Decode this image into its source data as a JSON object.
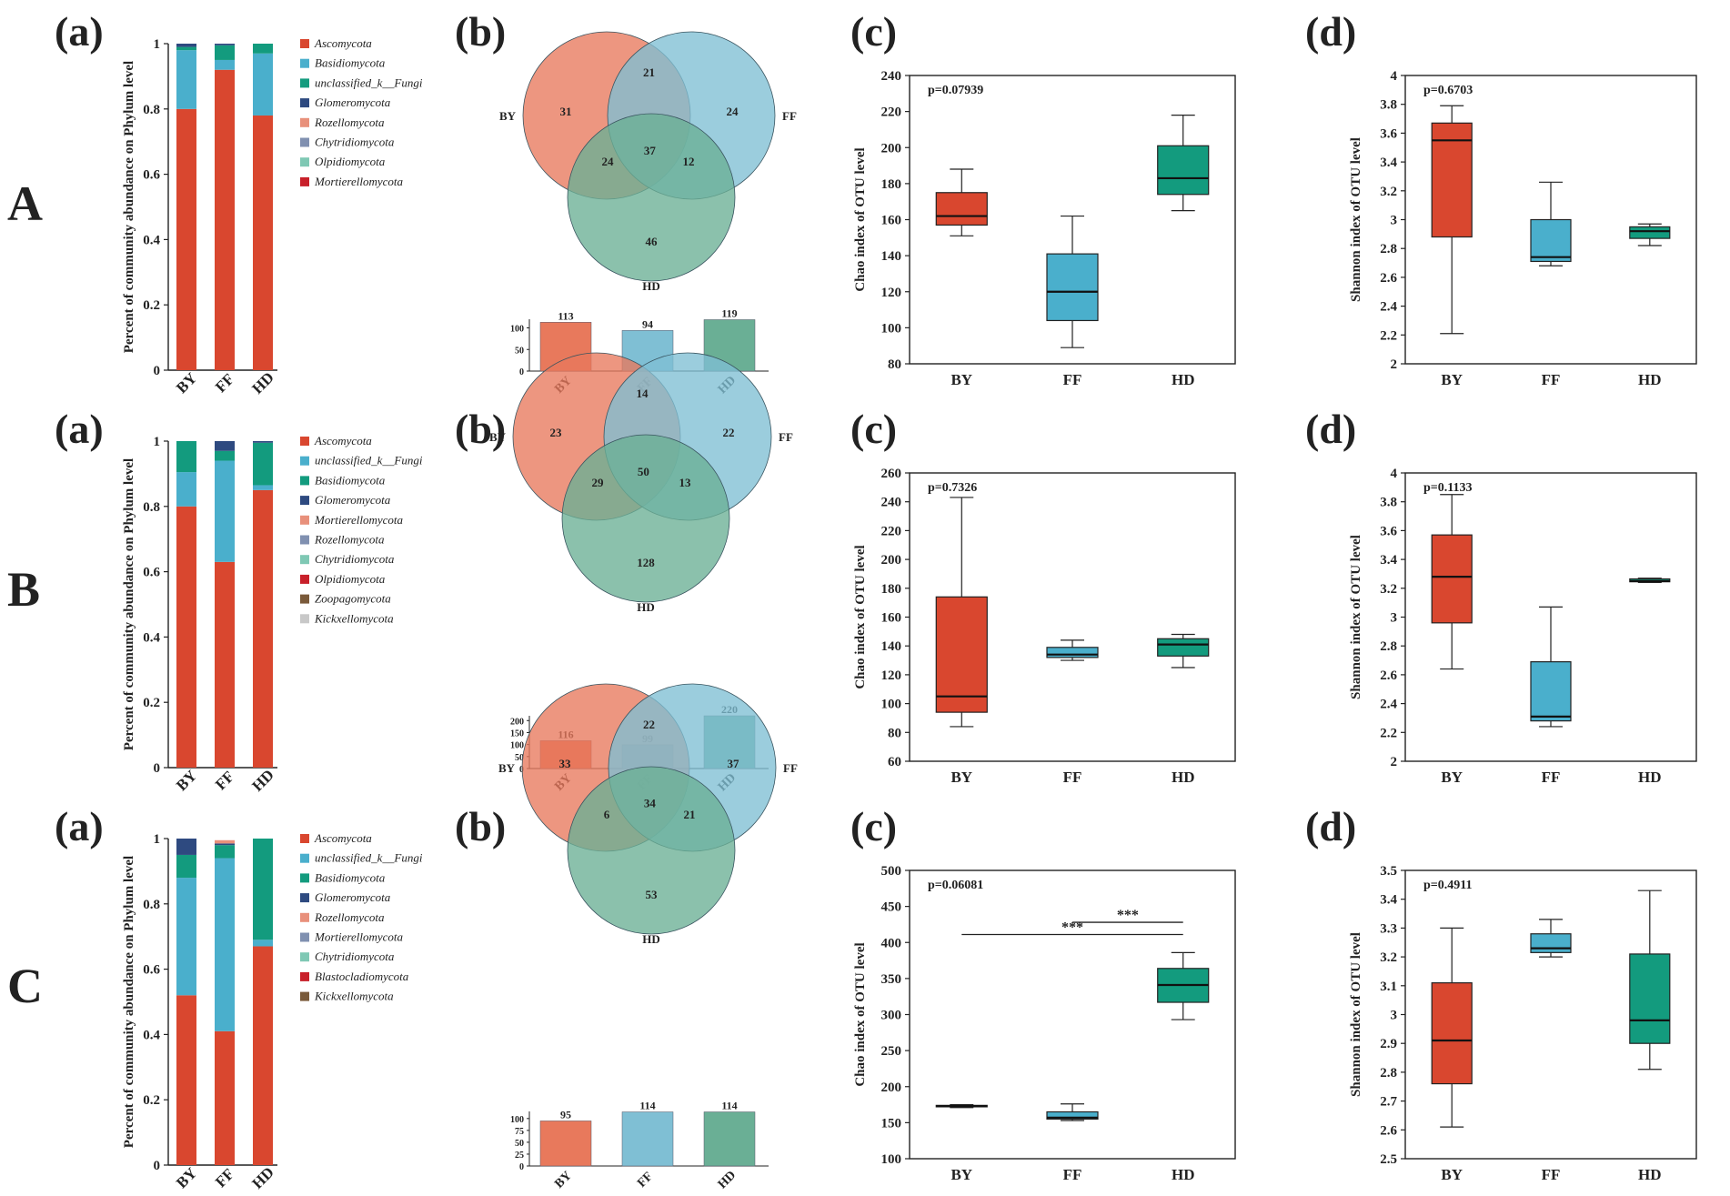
{
  "rows": [
    "A",
    "B",
    "C"
  ],
  "panels": [
    "(a)",
    "(b)",
    "(c)",
    "(d)"
  ],
  "colors": {
    "Ascomycota": "#D9472F",
    "Basidiomycota": "#4AAFCC",
    "unclassified_k__Fungi": "#139B7E",
    "Glomeromycota": "#2E4A80",
    "Rozellomycota": "#E8907B",
    "Chytridiomycota": "#8090B0",
    "Olpidiomycota": "#7FC8B4",
    "Mortierellomycota": "#C8202A",
    "Zoopagomycota": "#7A5A3A",
    "Kickxellomycota": "#C8C8C8",
    "Blastocladiomycota": "#C8202A",
    "venn_BY": "#E8795C",
    "venn_FF": "#7FBFD4",
    "venn_HD": "#6AAF95",
    "box_BY": "#D9472F",
    "box_FF": "#4AAFCC",
    "box_HD": "#139B7E"
  },
  "chart_data": [
    {
      "row": "A",
      "panel": "(a)",
      "type": "bar",
      "stacked": true,
      "ylabel": "Percent of community abundance on Phylum level",
      "ylim": [
        0,
        1
      ],
      "yticks": [
        "0",
        "0.2",
        "0.4",
        "0.6",
        "0.8",
        "1"
      ],
      "categories": [
        "BY",
        "FF",
        "HD"
      ],
      "series": [
        {
          "name": "Ascomycota",
          "color": "#D9472F",
          "values": [
            0.8,
            0.92,
            0.78
          ]
        },
        {
          "name": "Basidiomycota",
          "color": "#4AAFCC",
          "values": [
            0.18,
            0.03,
            0.19
          ]
        },
        {
          "name": "unclassified_k__Fungi",
          "color": "#139B7E",
          "values": [
            0.01,
            0.045,
            0.03
          ]
        },
        {
          "name": "Glomeromycota",
          "color": "#2E4A80",
          "values": [
            0.01,
            0.005,
            0.0
          ]
        },
        {
          "name": "Rozellomycota",
          "color": "#E8907B",
          "values": [
            0,
            0,
            0
          ]
        },
        {
          "name": "Chytridiomycota",
          "color": "#8090B0",
          "values": [
            0,
            0,
            0
          ]
        },
        {
          "name": "Olpidiomycota",
          "color": "#7FC8B4",
          "values": [
            0,
            0,
            0
          ]
        },
        {
          "name": "Mortierellomycota",
          "color": "#C8202A",
          "values": [
            0,
            0,
            0
          ]
        }
      ]
    },
    {
      "row": "A",
      "panel": "(b)",
      "type": "venn",
      "sets": [
        "BY",
        "FF",
        "HD"
      ],
      "regions": {
        "BY_only": "31",
        "FF_only": "24",
        "HD_only": "46",
        "BY_FF": "21",
        "BY_HD": "24",
        "FF_HD": "12",
        "all": "37"
      },
      "totals": {
        "categories": [
          "BY",
          "FF",
          "HD"
        ],
        "values": [
          113,
          94,
          119
        ],
        "labels": [
          "113",
          "94",
          "119"
        ],
        "ylim": [
          0,
          120
        ],
        "yticks": [
          "0",
          "50",
          "100"
        ]
      }
    },
    {
      "row": "A",
      "panel": "(c)",
      "type": "box",
      "ylabel": "Chao index of OTU level",
      "ylim": [
        80,
        240
      ],
      "yticks": [
        "80",
        "100",
        "120",
        "140",
        "160",
        "180",
        "200",
        "220",
        "240"
      ],
      "pvalue": "p=0.07939",
      "categories": [
        "BY",
        "FF",
        "HD"
      ],
      "boxes": [
        {
          "min": 151,
          "q1": 157,
          "median": 162,
          "q3": 175,
          "max": 188
        },
        {
          "min": 89,
          "q1": 104,
          "median": 120,
          "q3": 141,
          "max": 162
        },
        {
          "min": 165,
          "q1": 174,
          "median": 183,
          "q3": 201,
          "max": 218
        }
      ],
      "significance": []
    },
    {
      "row": "A",
      "panel": "(d)",
      "type": "box",
      "ylabel": "Shannon index of OTU level",
      "ylim": [
        2,
        4
      ],
      "yticks": [
        "2",
        "2.2",
        "2.4",
        "2.6",
        "2.8",
        "3",
        "3.2",
        "3.4",
        "3.6",
        "3.8",
        "4"
      ],
      "pvalue": "p=0.6703",
      "categories": [
        "BY",
        "FF",
        "HD"
      ],
      "boxes": [
        {
          "min": 2.21,
          "q1": 2.88,
          "median": 3.55,
          "q3": 3.67,
          "max": 3.79
        },
        {
          "min": 2.68,
          "q1": 2.71,
          "median": 2.74,
          "q3": 3.0,
          "max": 3.26
        },
        {
          "min": 2.82,
          "q1": 2.87,
          "median": 2.92,
          "q3": 2.95,
          "max": 2.97
        }
      ],
      "significance": []
    },
    {
      "row": "B",
      "panel": "(a)",
      "type": "bar",
      "stacked": true,
      "ylabel": "Percent of community abundance on Phylum level",
      "ylim": [
        0,
        1
      ],
      "yticks": [
        "0",
        "0.2",
        "0.4",
        "0.6",
        "0.8",
        "1"
      ],
      "categories": [
        "BY",
        "FF",
        "HD"
      ],
      "series": [
        {
          "name": "Ascomycota",
          "color": "#D9472F",
          "values": [
            0.8,
            0.63,
            0.85
          ]
        },
        {
          "name": "unclassified_k__Fungi",
          "color": "#4AAFCC",
          "values": [
            0.105,
            0.31,
            0.015
          ]
        },
        {
          "name": "Basidiomycota",
          "color": "#139B7E",
          "values": [
            0.095,
            0.03,
            0.13
          ]
        },
        {
          "name": "Glomeromycota",
          "color": "#2E4A80",
          "values": [
            0.0,
            0.03,
            0.005
          ]
        },
        {
          "name": "Mortierellomycota",
          "color": "#E8907B",
          "values": [
            0,
            0,
            0
          ]
        },
        {
          "name": "Rozellomycota",
          "color": "#8090B0",
          "values": [
            0,
            0,
            0
          ]
        },
        {
          "name": "Chytridiomycota",
          "color": "#7FC8B4",
          "values": [
            0,
            0,
            0
          ]
        },
        {
          "name": "Olpidiomycota",
          "color": "#C8202A",
          "values": [
            0,
            0,
            0
          ]
        },
        {
          "name": "Zoopagomycota",
          "color": "#7A5A3A",
          "values": [
            0,
            0,
            0
          ]
        },
        {
          "name": "Kickxellomycota",
          "color": "#C8C8C8",
          "values": [
            0,
            0,
            0
          ]
        }
      ]
    },
    {
      "row": "B",
      "panel": "(b)",
      "type": "venn",
      "sets": [
        "BY",
        "FF",
        "HD"
      ],
      "regions": {
        "BY_only": "23",
        "FF_only": "22",
        "HD_only": "128",
        "BY_FF": "14",
        "BY_HD": "29",
        "FF_HD": "13",
        "all": "50"
      },
      "totals": {
        "categories": [
          "BY",
          "FF",
          "HD"
        ],
        "values": [
          116,
          99,
          220
        ],
        "labels": [
          "116",
          "99",
          "220"
        ],
        "ylim": [
          0,
          220
        ],
        "yticks": [
          "0",
          "50",
          "100",
          "150",
          "200"
        ]
      }
    },
    {
      "row": "B",
      "panel": "(c)",
      "type": "box",
      "ylabel": "Chao index of OTU level",
      "ylim": [
        60,
        260
      ],
      "yticks": [
        "60",
        "80",
        "100",
        "120",
        "140",
        "160",
        "180",
        "200",
        "220",
        "240",
        "260"
      ],
      "pvalue": "p=0.7326",
      "categories": [
        "BY",
        "FF",
        "HD"
      ],
      "boxes": [
        {
          "min": 84,
          "q1": 94,
          "median": 105,
          "q3": 174,
          "max": 243
        },
        {
          "min": 130,
          "q1": 132,
          "median": 134,
          "q3": 139,
          "max": 144
        },
        {
          "min": 125,
          "q1": 133,
          "median": 141,
          "q3": 145,
          "max": 148
        }
      ],
      "significance": []
    },
    {
      "row": "B",
      "panel": "(d)",
      "type": "box",
      "ylabel": "Shannon index of OTU level",
      "ylim": [
        2,
        4
      ],
      "yticks": [
        "2",
        "2.2",
        "2.4",
        "2.6",
        "2.8",
        "3",
        "3.2",
        "3.4",
        "3.6",
        "3.8",
        "4"
      ],
      "pvalue": "p=0.1133",
      "categories": [
        "BY",
        "FF",
        "HD"
      ],
      "boxes": [
        {
          "min": 2.64,
          "q1": 2.96,
          "median": 3.28,
          "q3": 3.57,
          "max": 3.85
        },
        {
          "min": 2.24,
          "q1": 2.28,
          "median": 2.31,
          "q3": 2.69,
          "max": 3.07
        },
        {
          "min": 3.24,
          "q1": 3.245,
          "median": 3.25,
          "q3": 3.265,
          "max": 3.27
        }
      ],
      "significance": []
    },
    {
      "row": "C",
      "panel": "(a)",
      "type": "bar",
      "stacked": true,
      "ylabel": "Percent of community abundance on Phylum level",
      "ylim": [
        0,
        1
      ],
      "yticks": [
        "0",
        "0.2",
        "0.4",
        "0.6",
        "0.8",
        "1"
      ],
      "categories": [
        "BY",
        "FF",
        "HD"
      ],
      "series": [
        {
          "name": "Ascomycota",
          "color": "#D9472F",
          "values": [
            0.52,
            0.41,
            0.67
          ]
        },
        {
          "name": "unclassified_k__Fungi",
          "color": "#4AAFCC",
          "values": [
            0.36,
            0.53,
            0.02
          ]
        },
        {
          "name": "Basidiomycota",
          "color": "#139B7E",
          "values": [
            0.07,
            0.04,
            0.31
          ]
        },
        {
          "name": "Glomeromycota",
          "color": "#2E4A80",
          "values": [
            0.05,
            0.005,
            0.0
          ]
        },
        {
          "name": "Rozellomycota",
          "color": "#E8907B",
          "values": [
            0.0,
            0.01,
            0.0
          ]
        },
        {
          "name": "Mortierellomycota",
          "color": "#8090B0",
          "values": [
            0,
            0,
            0
          ]
        },
        {
          "name": "Chytridiomycota",
          "color": "#7FC8B4",
          "values": [
            0,
            0,
            0
          ]
        },
        {
          "name": "Blastocladiomycota",
          "color": "#C8202A",
          "values": [
            0,
            0,
            0
          ]
        },
        {
          "name": "Kickxellomycota",
          "color": "#7A5A3A",
          "values": [
            0,
            0,
            0
          ]
        }
      ]
    },
    {
      "row": "C",
      "panel": "(b)",
      "type": "venn",
      "sets": [
        "BY",
        "FF",
        "HD"
      ],
      "regions": {
        "BY_only": "33",
        "FF_only": "37",
        "HD_only": "53",
        "BY_FF": "22",
        "BY_HD": "6",
        "FF_HD": "21",
        "all": "34"
      },
      "totals": {
        "categories": [
          "BY",
          "FF",
          "HD"
        ],
        "values": [
          95,
          114,
          114
        ],
        "labels": [
          "95",
          "114",
          "114"
        ],
        "ylim": [
          0,
          115
        ],
        "yticks": [
          "0",
          "25",
          "50",
          "75",
          "100"
        ]
      }
    },
    {
      "row": "C",
      "panel": "(c)",
      "type": "box",
      "ylabel": "Chao index of OTU level",
      "ylim": [
        100,
        500
      ],
      "yticks": [
        "100",
        "150",
        "200",
        "250",
        "300",
        "350",
        "400",
        "450",
        "500"
      ],
      "pvalue": "p=0.06081",
      "categories": [
        "BY",
        "FF",
        "HD"
      ],
      "boxes": [
        {
          "min": 171,
          "q1": 172,
          "median": 173,
          "q3": 174,
          "max": 175
        },
        {
          "min": 153,
          "q1": 155,
          "median": 157,
          "q3": 165,
          "max": 176
        },
        {
          "min": 293,
          "q1": 317,
          "median": 341,
          "q3": 364,
          "max": 386
        }
      ],
      "significance": [
        {
          "from": 1,
          "to": 2,
          "y": 428,
          "label": "***"
        },
        {
          "from": 0,
          "to": 2,
          "y": 411,
          "label": "***"
        }
      ]
    },
    {
      "row": "C",
      "panel": "(d)",
      "type": "box",
      "ylabel": "Shannon index of OTU level",
      "ylim": [
        2.5,
        3.5
      ],
      "yticks": [
        "2.5",
        "2.6",
        "2.7",
        "2.8",
        "2.9",
        "3",
        "3.1",
        "3.2",
        "3.3",
        "3.4",
        "3.5"
      ],
      "pvalue": "p=0.4911",
      "categories": [
        "BY",
        "FF",
        "HD"
      ],
      "boxes": [
        {
          "min": 2.61,
          "q1": 2.76,
          "median": 2.91,
          "q3": 3.11,
          "max": 3.3
        },
        {
          "min": 3.2,
          "q1": 3.215,
          "median": 3.23,
          "q3": 3.28,
          "max": 3.33
        },
        {
          "min": 2.81,
          "q1": 2.9,
          "median": 2.98,
          "q3": 3.21,
          "max": 3.43
        }
      ],
      "significance": []
    }
  ]
}
